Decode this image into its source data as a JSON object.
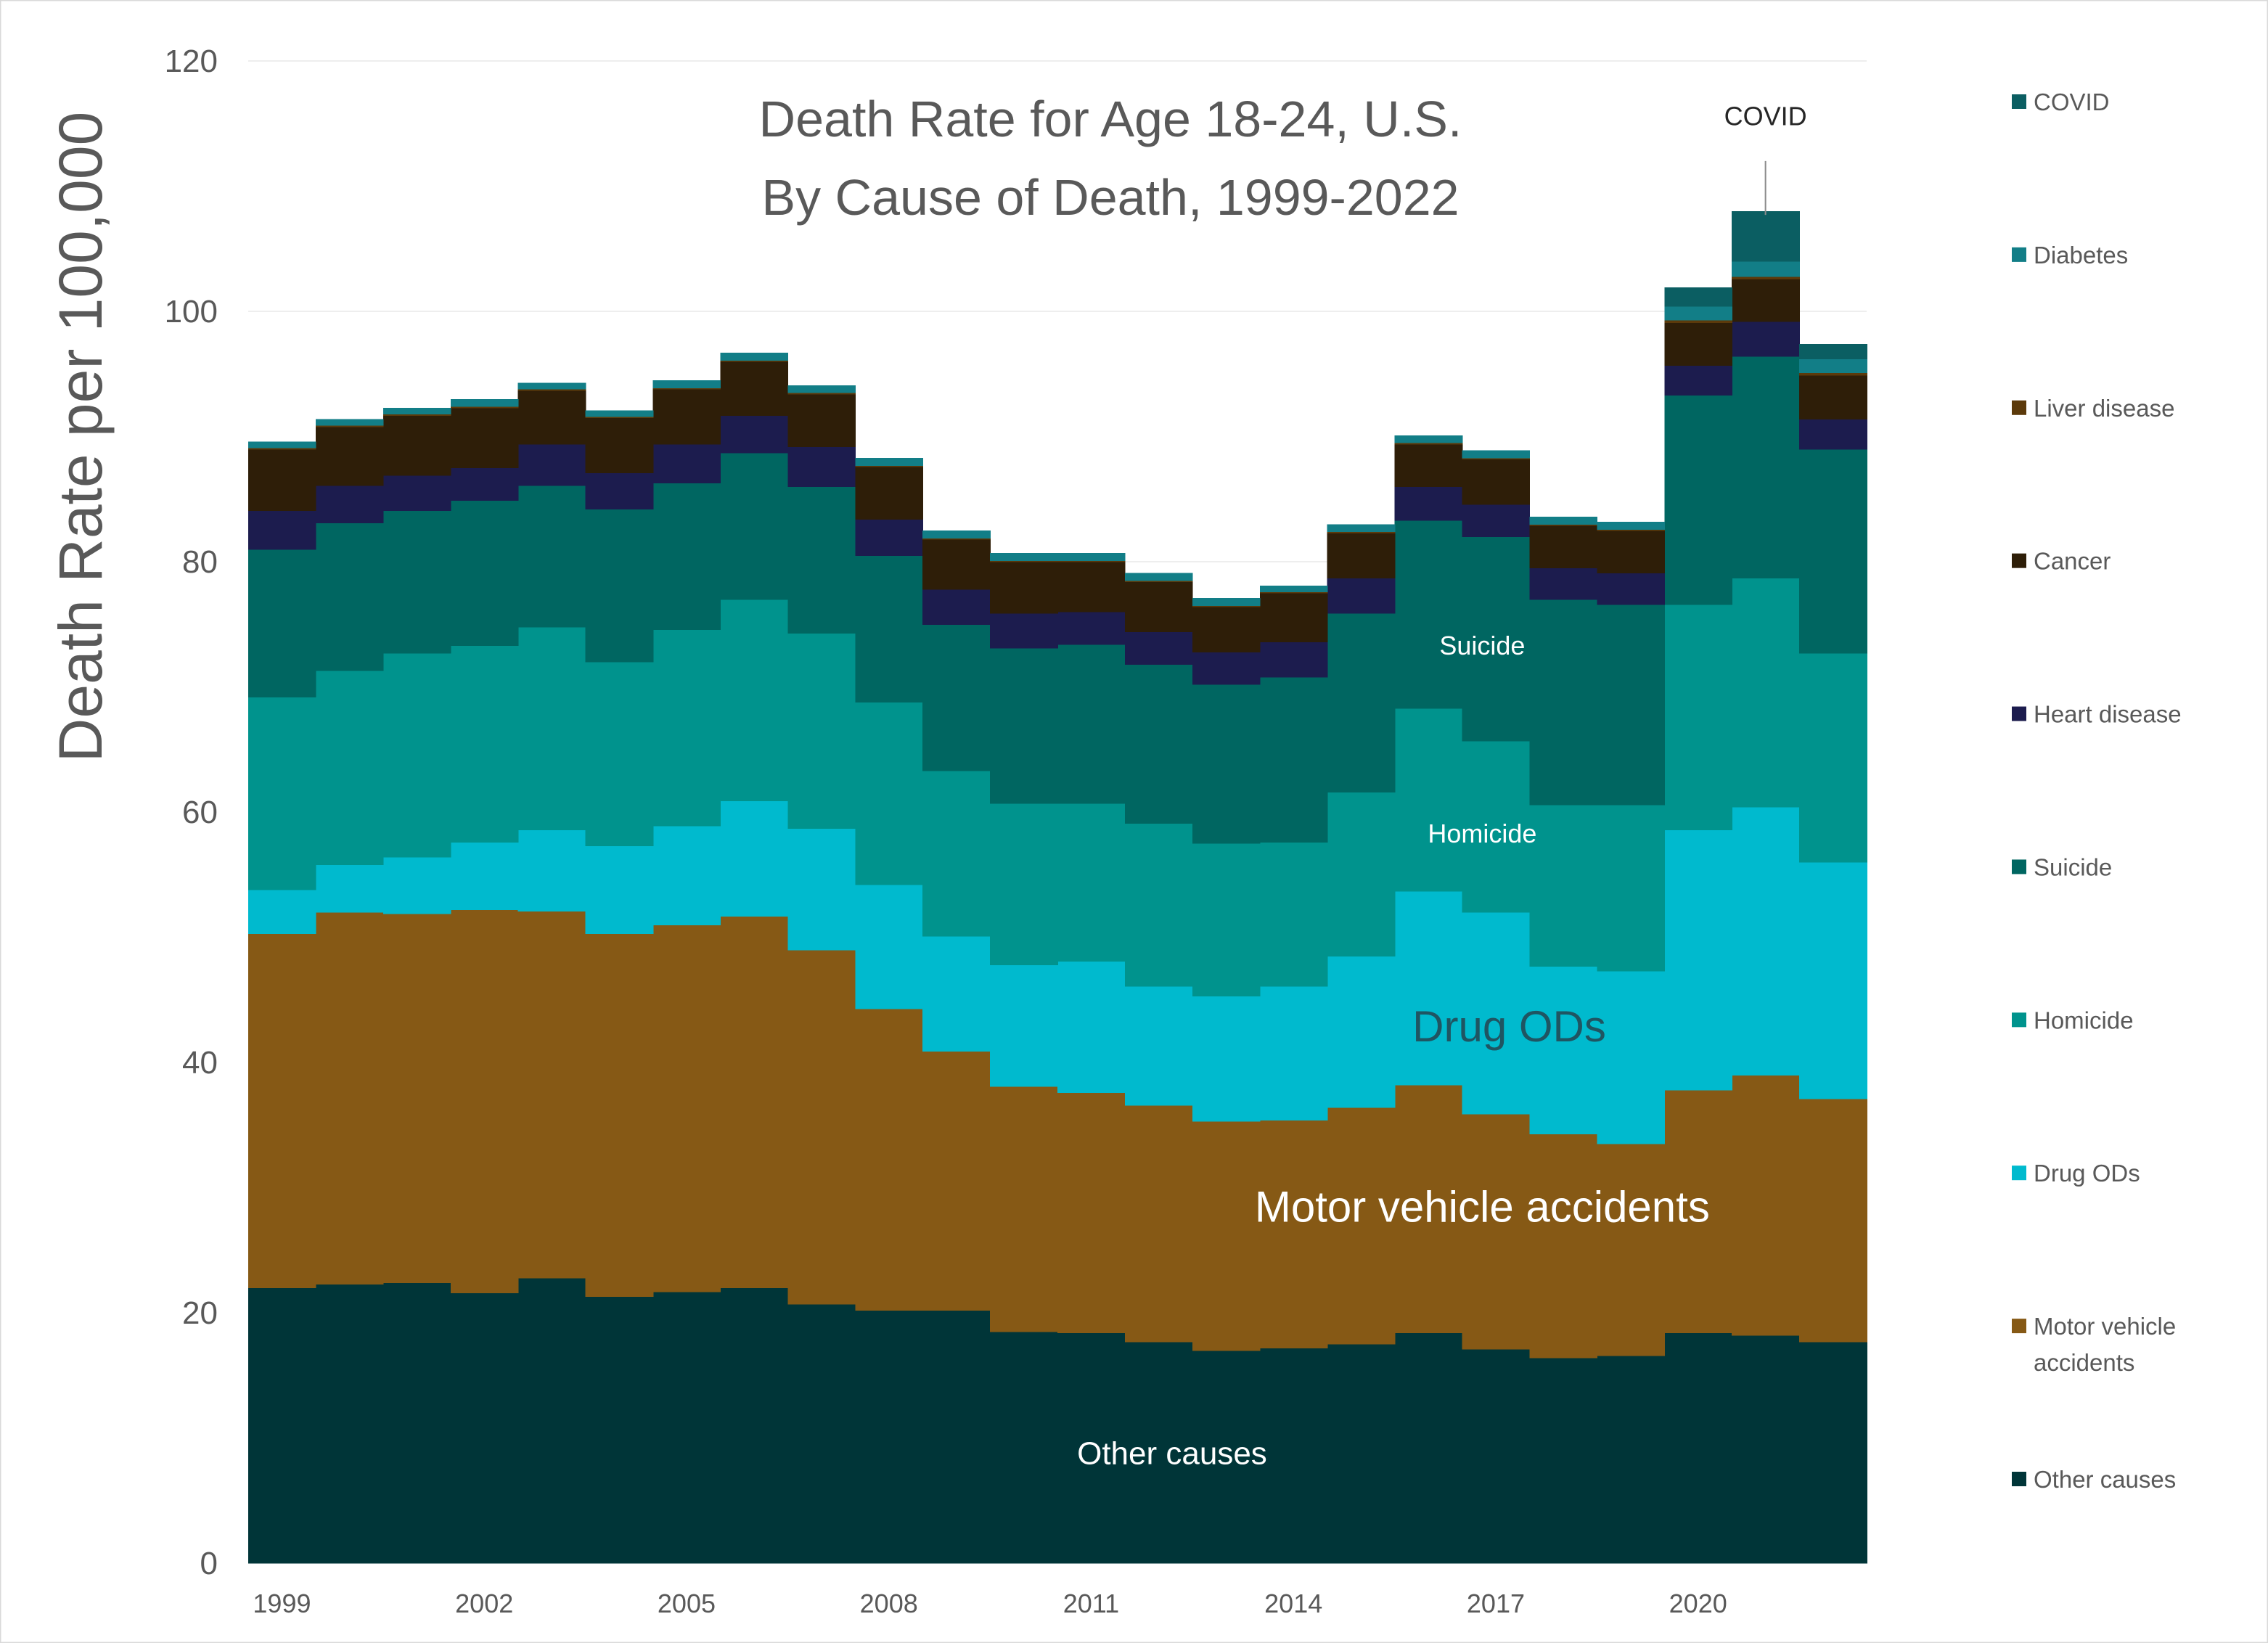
{
  "chart_data": {
    "type": "area",
    "style": "stacked-step",
    "title_line1": "Death Rate for Age 18-24, U.S.",
    "title_line2": "By Cause of Death, 1999-2022",
    "ylabel": "Death Rate per 100,000",
    "xlabel": "",
    "ylim": [
      0,
      120
    ],
    "yticks": [
      0,
      20,
      40,
      60,
      80,
      100,
      120
    ],
    "x": [
      1999,
      2000,
      2001,
      2002,
      2003,
      2004,
      2005,
      2006,
      2007,
      2008,
      2009,
      2010,
      2011,
      2012,
      2013,
      2014,
      2015,
      2016,
      2017,
      2018,
      2019,
      2020,
      2021,
      2022
    ],
    "xticks": [
      "1999",
      "2002",
      "2005",
      "2008",
      "2011",
      "2014",
      "2017",
      "2020"
    ],
    "grid": "horizontal",
    "legend_position": "right",
    "series": [
      {
        "name": "Other causes",
        "color": "#003538",
        "values": [
          22.0,
          22.3,
          22.4,
          21.6,
          22.8,
          21.3,
          21.7,
          22.0,
          20.7,
          20.2,
          20.2,
          18.5,
          18.4,
          17.7,
          17.0,
          17.2,
          17.5,
          18.4,
          17.1,
          16.4,
          16.6,
          18.4,
          18.2,
          17.7
        ]
      },
      {
        "name": "Motor vehicle accidents",
        "color": "#865915",
        "values": [
          28.3,
          29.7,
          29.5,
          30.6,
          29.3,
          29.0,
          29.3,
          29.7,
          28.3,
          24.1,
          20.7,
          19.6,
          19.2,
          18.9,
          18.3,
          18.2,
          18.9,
          19.8,
          18.8,
          17.9,
          16.9,
          19.4,
          20.8,
          19.4
        ]
      },
      {
        "name": "Drug ODs",
        "color": "#00BACE",
        "values": [
          3.5,
          3.8,
          4.5,
          5.4,
          6.5,
          7.0,
          7.9,
          9.2,
          9.7,
          9.9,
          9.2,
          9.7,
          10.5,
          9.5,
          10.0,
          10.7,
          12.1,
          15.5,
          16.1,
          13.4,
          13.8,
          20.8,
          21.4,
          18.9
        ]
      },
      {
        "name": "Homicide",
        "color": "#00938D",
        "values": [
          15.4,
          15.5,
          16.3,
          15.7,
          16.2,
          14.7,
          15.7,
          16.1,
          15.6,
          14.6,
          13.2,
          12.9,
          12.6,
          13.0,
          12.2,
          11.5,
          13.1,
          14.6,
          13.7,
          12.9,
          13.3,
          18.0,
          18.3,
          16.7
        ]
      },
      {
        "name": "Suicide",
        "color": "#006661",
        "values": [
          11.8,
          11.8,
          11.4,
          11.6,
          11.3,
          12.2,
          11.7,
          11.7,
          11.7,
          11.7,
          11.7,
          12.4,
          12.7,
          12.7,
          12.7,
          13.2,
          14.3,
          15.0,
          16.3,
          16.4,
          16.0,
          16.7,
          17.7,
          16.3
        ]
      },
      {
        "name": "Heart disease",
        "color": "#1C1C4E",
        "values": [
          3.1,
          3.0,
          2.8,
          2.6,
          3.3,
          2.9,
          3.1,
          3.0,
          3.2,
          2.9,
          2.8,
          2.8,
          2.6,
          2.6,
          2.6,
          2.8,
          2.8,
          2.7,
          2.6,
          2.5,
          2.5,
          2.4,
          2.8,
          2.4
        ]
      },
      {
        "name": "Cancer",
        "color": "#2E1E08",
        "values": [
          4.9,
          4.7,
          4.8,
          4.8,
          4.3,
          4.4,
          4.4,
          4.3,
          4.2,
          4.2,
          4.0,
          4.1,
          4.0,
          4.0,
          3.6,
          3.9,
          3.6,
          3.4,
          3.6,
          3.4,
          3.4,
          3.4,
          3.4,
          3.5
        ]
      },
      {
        "name": "Liver disease",
        "color": "#5C3A0B",
        "values": [
          0.1,
          0.1,
          0.1,
          0.1,
          0.1,
          0.1,
          0.1,
          0.1,
          0.1,
          0.1,
          0.1,
          0.1,
          0.1,
          0.1,
          0.1,
          0.1,
          0.1,
          0.1,
          0.1,
          0.1,
          0.1,
          0.2,
          0.2,
          0.2
        ]
      },
      {
        "name": "Diabetes",
        "color": "#127E87",
        "values": [
          0.5,
          0.5,
          0.5,
          0.6,
          0.5,
          0.5,
          0.6,
          0.6,
          0.6,
          0.6,
          0.6,
          0.6,
          0.6,
          0.6,
          0.6,
          0.5,
          0.6,
          0.6,
          0.6,
          0.6,
          0.6,
          1.1,
          1.2,
          1.1
        ]
      },
      {
        "name": "COVID",
        "color": "#0B5E62",
        "values": [
          0,
          0,
          0,
          0,
          0,
          0,
          0,
          0,
          0,
          0,
          0,
          0,
          0,
          0,
          0,
          0,
          0,
          0,
          0,
          0,
          0,
          1.5,
          4.0,
          1.2
        ]
      }
    ],
    "annotations": [
      {
        "text": "Other causes",
        "series": "Other causes",
        "x": 2012.2,
        "y": 8.8,
        "size": "medium",
        "color": "#ffffff"
      },
      {
        "text": "Motor vehicle accidents",
        "series": "Motor vehicle accidents",
        "x": 2016.8,
        "y": 28.5,
        "size": "large",
        "color": "#ffffff"
      },
      {
        "text": "Drug ODs",
        "series": "Drug ODs",
        "x": 2017.2,
        "y": 42.9,
        "size": "large",
        "color": "#1F5562"
      },
      {
        "text": "Homicide",
        "series": "Homicide",
        "x": 2016.8,
        "y": 58.3,
        "size": "small",
        "color": "#ffffff"
      },
      {
        "text": "Suicide",
        "series": "Suicide",
        "x": 2016.8,
        "y": 73.3,
        "size": "small",
        "color": "#ffffff"
      },
      {
        "text": "COVID",
        "series": "COVID",
        "x": 2021.0,
        "y": 115.6,
        "size": "small",
        "color": "#262626",
        "leader_to_y": 107.7
      }
    ]
  }
}
